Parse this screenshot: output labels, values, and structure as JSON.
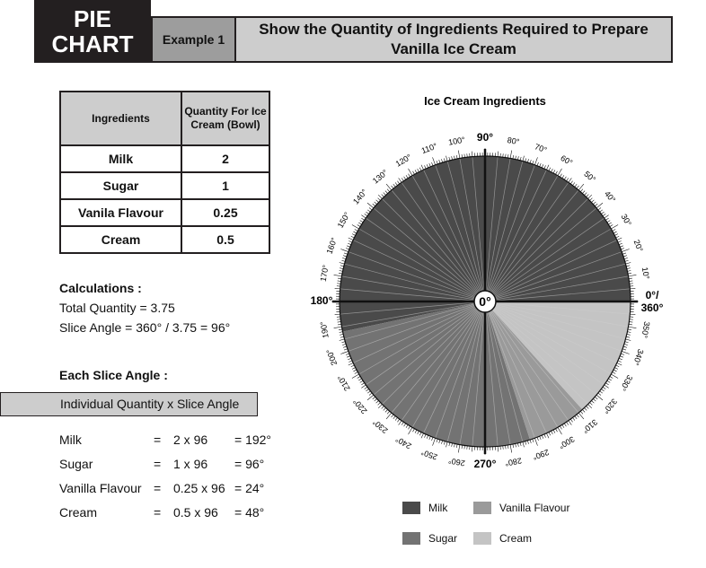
{
  "header": {
    "badge_line1": "PIE",
    "badge_line2": "CHART",
    "example_label": "Example 1",
    "title": "Show the Quantity of Ingredients Required to Prepare Vanilla Ice Cream"
  },
  "table": {
    "col1": "Ingredients",
    "col2": "Quantity For Ice Cream (Bowl)",
    "rows": [
      {
        "name": "Milk",
        "qty": "2"
      },
      {
        "name": "Sugar",
        "qty": "1"
      },
      {
        "name": "Vanila Flavour",
        "qty": "0.25"
      },
      {
        "name": "Cream",
        "qty": "0.5"
      }
    ]
  },
  "calculations": {
    "title": "Calculations :",
    "total": "Total Quantity = 3.75",
    "slice_angle": "Slice Angle = 360° / 3.75 = 96°"
  },
  "slice_section": {
    "title": "Each Slice Angle :",
    "formula": "Individual Quantity x Slice Angle",
    "rows": [
      {
        "name": "Milk",
        "eq": "=",
        "expr": "2 x 96",
        "res": "= 192°"
      },
      {
        "name": "Sugar",
        "eq": "=",
        "expr": "1 x 96",
        "res": "= 96°"
      },
      {
        "name": "Vanilla Flavour",
        "eq": "=",
        "expr": "0.25 x 96",
        "res": "= 24°"
      },
      {
        "name": "Cream",
        "eq": "=",
        "expr": "0.5 x 96",
        "res": "= 48°"
      }
    ]
  },
  "chart_data": {
    "type": "pie",
    "title": "Ice Cream Ingredients",
    "categories": [
      "Milk",
      "Sugar",
      "Vanilla Flavour",
      "Cream"
    ],
    "values": [
      192,
      96,
      24,
      48
    ],
    "colors": [
      "#4a4a4a",
      "#737373",
      "#9a9a9a",
      "#c4c4c4"
    ],
    "protractor": {
      "center_label": "0°",
      "tick_labels": [
        "0°/\n360°",
        "10°",
        "20°",
        "30°",
        "40°",
        "50°",
        "60°",
        "70°",
        "80°",
        "90°",
        "100°",
        "110°",
        "120°",
        "130°",
        "140°",
        "150°",
        "160°",
        "170°",
        "180°",
        "190°",
        "200°",
        "210°",
        "220°",
        "230°",
        "240°",
        "250°",
        "260°",
        "270°",
        "280°",
        "290°",
        "300°",
        "310°",
        "320°",
        "330°",
        "340°",
        "350°"
      ]
    }
  },
  "legend": [
    {
      "label": "Milk",
      "color": "#4a4a4a"
    },
    {
      "label": "Vanilla Flavour",
      "color": "#9a9a9a"
    },
    {
      "label": "Sugar",
      "color": "#737373"
    },
    {
      "label": "Cream",
      "color": "#c4c4c4"
    }
  ]
}
